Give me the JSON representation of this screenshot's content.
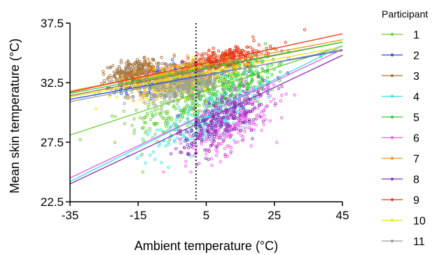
{
  "chart_data": {
    "type": "scatter",
    "xlabel": "Ambient temperature (°C)",
    "ylabel": "Mean skin temperature (°C)",
    "xlim": [
      -35,
      45
    ],
    "ylim": [
      22.5,
      37.5
    ],
    "xticks": [
      "-35",
      "-15",
      "5",
      "25",
      "45"
    ],
    "yticks": [
      "22.5",
      "27.5",
      "32.5",
      "37.5"
    ],
    "reference_line_x": 2,
    "legend_title": "Participant",
    "legend_position": "right",
    "series": [
      {
        "name": "1",
        "color": "#66cc33",
        "center": [
          0,
          30.5
        ],
        "spread": [
          16,
          2.6
        ],
        "fit": [
          [
            -35,
            28.1
          ],
          [
            45,
            35.6
          ]
        ]
      },
      {
        "name": "2",
        "color": "#1f4fd8",
        "center": [
          -4,
          33.0
        ],
        "spread": [
          14,
          1.3
        ],
        "fit": [
          [
            -35,
            31.1
          ],
          [
            45,
            35.2
          ]
        ]
      },
      {
        "name": "3",
        "color": "#a0703c",
        "center": [
          -16,
          33.4
        ],
        "spread": [
          7,
          1.1
        ],
        "fit": [
          [
            -35,
            31.4
          ],
          [
            45,
            35.9
          ]
        ]
      },
      {
        "name": "4",
        "color": "#33e0e8",
        "center": [
          6,
          29.5
        ],
        "spread": [
          14,
          2.4
        ],
        "fit": [
          [
            -35,
            24.2
          ],
          [
            45,
            35.6
          ]
        ]
      },
      {
        "name": "5",
        "color": "#2ecc2e",
        "center": [
          14,
          33.0
        ],
        "spread": [
          14,
          2.0
        ],
        "fit": [
          [
            -35,
            31.6
          ],
          [
            45,
            35.9
          ]
        ]
      },
      {
        "name": "6",
        "color": "#e85ce8",
        "center": [
          12,
          29.0
        ],
        "spread": [
          12,
          2.6
        ],
        "fit": [
          [
            -35,
            24.5
          ],
          [
            45,
            35.3
          ]
        ]
      },
      {
        "name": "7",
        "color": "#f0941e",
        "center": [
          -5,
          33.0
        ],
        "spread": [
          13,
          1.4
        ],
        "fit": [
          [
            -35,
            31.8
          ],
          [
            45,
            36.1
          ]
        ]
      },
      {
        "name": "8",
        "color": "#8a2fb5",
        "center": [
          10,
          29.5
        ],
        "spread": [
          12,
          2.4
        ],
        "fit": [
          [
            -35,
            24.0
          ],
          [
            45,
            34.8
          ]
        ]
      },
      {
        "name": "9",
        "color": "#ee3311",
        "center": [
          10,
          34.5
        ],
        "spread": [
          12,
          1.0
        ],
        "fit": [
          [
            -35,
            31.7
          ],
          [
            45,
            36.6
          ]
        ]
      },
      {
        "name": "10",
        "color": "#f0e014",
        "center": [
          -4,
          32.6
        ],
        "spread": [
          14,
          1.4
        ],
        "fit": [
          [
            -35,
            31.3
          ],
          [
            45,
            35.5
          ]
        ]
      },
      {
        "name": "11",
        "color": "#9a9a9a",
        "center": [
          -2,
          32.2
        ],
        "spread": [
          14,
          1.3
        ],
        "fit": [
          [
            -35,
            30.9
          ],
          [
            45,
            35.3
          ]
        ]
      }
    ]
  }
}
